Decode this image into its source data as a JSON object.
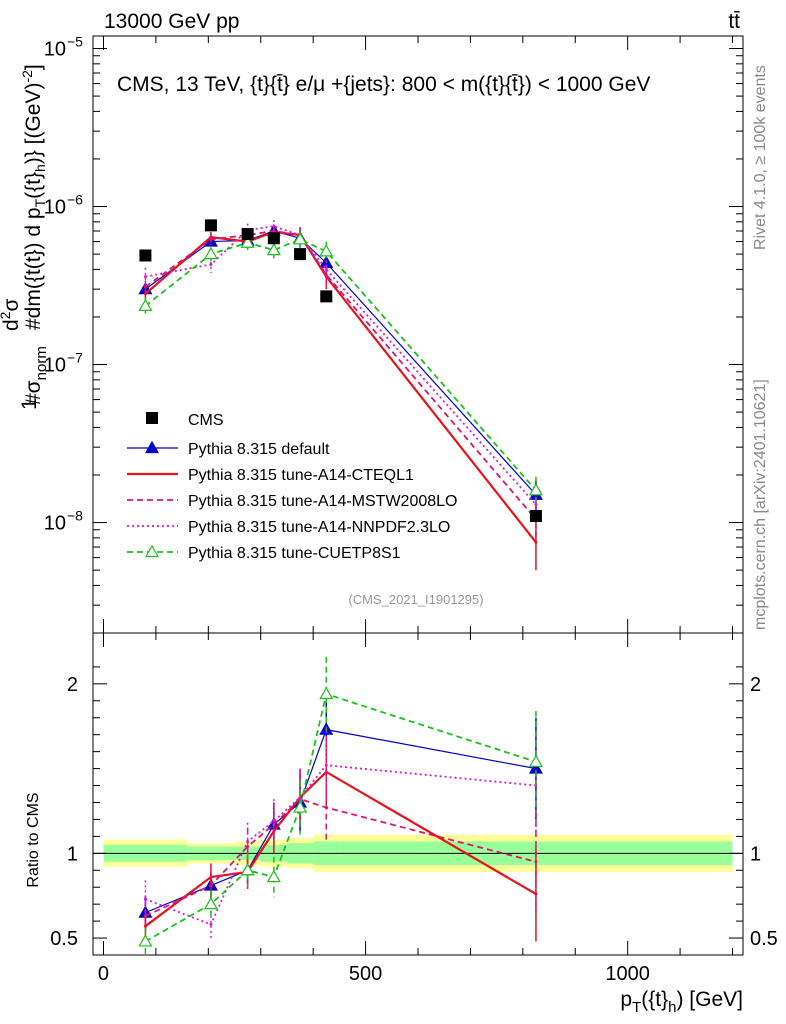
{
  "header": {
    "energy_label": "13000 GeV pp",
    "process_label": "tt̄",
    "rivet_label": "Rivet 4.1.0, ≥ 100k events",
    "mcplots_label": "mcplots.cern.ch [arXiv:2401.10621]",
    "analysis_id": "(CMS_2021_I1901295)"
  },
  "colors": {
    "cms": "#000000",
    "default": "#0000cc",
    "cteql1": "#e8121b",
    "mstw": "#e0126e",
    "nnpdf": "#d61ad6",
    "cuetp8s1": "#19c119",
    "band_inner": "#99ff99",
    "band_outer": "#ffff99"
  },
  "chart_data": [
    {
      "type": "line",
      "panel": "main",
      "title": "CMS, 13 TeV, {t}{t̄} e/μ +{jets}: 800 < m({t}{t̄}) < 1000 GeV",
      "ylabel_main": "#frac{1}{σ_norm} #frac{d²σ}{dm({t}{t̄}) d p_T({t}_h)} [(GeV)⁻²]",
      "ylabel_parts": {
        "frac1_num": "1",
        "frac1_den": "#σ",
        "frac1_sub": "norm",
        "frac2_num": "d",
        "frac2_num2": "σ",
        "frac2_sup": "2",
        "frac2_den": "#dm({t",
        "rest": "(t}) d p",
        "sub_T": "T",
        "rest2": "({t}",
        "sub_h": "h",
        "rest3": ")} [(GeV)",
        "sup_exp": "-2",
        "rest4": "]"
      },
      "xlabel_parts": {
        "p": "p",
        "sub_T": "T",
        "mid": "({t}",
        "sub_h": "h",
        "end": ") [GeV]"
      },
      "xlim": [
        -20,
        1220
      ],
      "ylim_log": [
        2e-09,
        1.2e-05
      ],
      "y_ticks": [
        {
          "value": 1e-08,
          "label": "10",
          "exp": "−8"
        },
        {
          "value": 1e-07,
          "label": "10",
          "exp": "−7"
        },
        {
          "value": 1e-06,
          "label": "10",
          "exp": "−6"
        },
        {
          "value": 1e-05,
          "label": "10",
          "exp": "−5"
        }
      ],
      "x_ticks": [
        {
          "value": 0,
          "label": "0"
        },
        {
          "value": 500,
          "label": "500"
        },
        {
          "value": 1000,
          "label": "1000"
        }
      ],
      "bin_edges": [
        0,
        160,
        250,
        300,
        350,
        400,
        450,
        1200
      ],
      "x": [
        80,
        205,
        275,
        325,
        375,
        425,
        825
      ],
      "cms": {
        "name": "CMS",
        "values": [
          4.9e-07,
          7.6e-07,
          6.7e-07,
          6.3e-07,
          5e-07,
          2.7e-07,
          1.1e-08
        ],
        "rel_err_inner": [
          0.05,
          0.04,
          0.04,
          0.05,
          0.06,
          0.07,
          0.07
        ],
        "rel_err_outer": [
          0.08,
          0.06,
          0.07,
          0.08,
          0.09,
          0.11,
          0.11
        ]
      },
      "series": [
        {
          "name": "Pythia 8.315 default",
          "key": "default",
          "style": "solid",
          "marker": "triangle-filled",
          "values": [
            3e-07,
            6e-07,
            6.1e-07,
            7e-07,
            6.3e-07,
            4.4e-07,
            1.5e-08
          ],
          "errors": [
            5e-09,
            3e-08,
            5e-08,
            6e-08,
            8e-08,
            6e-08,
            3.5e-09
          ]
        },
        {
          "name": "Pythia 8.315 tune-A14-CTEQL1",
          "key": "cteql1",
          "style": "solid",
          "marker": "none",
          "values": [
            2.8e-07,
            6.4e-07,
            6e-07,
            6.9e-07,
            6.6e-07,
            3.6e-07,
            7.5e-09
          ],
          "errors": [
            3e-08,
            5e-08,
            6e-08,
            7e-08,
            8e-08,
            6e-08,
            2.5e-09
          ]
        },
        {
          "name": "Pythia 8.315 tune-A14-MSTW2008LO",
          "key": "mstw",
          "style": "dashed",
          "marker": "none",
          "values": [
            3.1e-07,
            6.2e-07,
            6.6e-07,
            7e-07,
            6.6e-07,
            3.7e-07,
            1.05e-08
          ],
          "errors": [
            3e-08,
            5e-08,
            6e-08,
            7e-08,
            8e-08,
            6e-08,
            3e-09
          ]
        },
        {
          "name": "Pythia 8.315 tune-A14-NNPDF2.3LO",
          "key": "nnpdf",
          "style": "dotted",
          "marker": "none",
          "values": [
            3.6e-07,
            4.3e-07,
            7.1e-07,
            7.5e-07,
            6.6e-07,
            4e-07,
            1.3e-08
          ],
          "errors": [
            5e-08,
            5e-08,
            7e-08,
            7e-08,
            8e-08,
            6e-08,
            3.5e-09
          ]
        },
        {
          "name": "Pythia 8.315 tune-CUETP8S1",
          "key": "cuetp8s1",
          "style": "dashed",
          "marker": "triangle-open",
          "values": [
            2.35e-07,
            5e-07,
            5.9e-07,
            5.3e-07,
            6.2e-07,
            5.2e-07,
            1.6e-08
          ],
          "errors": [
            3e-08,
            5e-08,
            6e-08,
            6e-08,
            8e-08,
            8e-08,
            3.5e-09
          ]
        }
      ]
    },
    {
      "type": "line",
      "panel": "ratio",
      "ylabel": "Ratio to CMS",
      "ylim": [
        0.4,
        2.3
      ],
      "y_ticks": [
        {
          "value": 0.5,
          "label": "0.5"
        },
        {
          "value": 1,
          "label": "1"
        },
        {
          "value": 2,
          "label": "2"
        }
      ],
      "x": [
        80,
        205,
        275,
        325,
        375,
        425,
        825
      ],
      "series": [
        {
          "key": "default",
          "values": [
            0.65,
            0.81,
            0.9,
            1.17,
            1.3,
            1.73,
            1.5
          ],
          "errors": [
            0.1,
            0.07,
            0.1,
            0.13,
            0.17,
            0.2,
            0.3
          ]
        },
        {
          "key": "cteql1",
          "values": [
            0.57,
            0.86,
            0.89,
            1.13,
            1.33,
            1.48,
            0.76
          ],
          "errors": [
            0.1,
            0.08,
            0.1,
            0.13,
            0.17,
            0.2,
            0.28
          ]
        },
        {
          "key": "mstw",
          "values": [
            0.63,
            0.81,
            1.04,
            1.17,
            1.32,
            1.27,
            0.95
          ],
          "errors": [
            0.1,
            0.08,
            0.11,
            0.13,
            0.17,
            0.2,
            0.3
          ]
        },
        {
          "key": "nnpdf",
          "values": [
            0.73,
            0.58,
            1.07,
            1.19,
            1.33,
            1.52,
            1.4
          ],
          "errors": [
            0.11,
            0.08,
            0.11,
            0.13,
            0.17,
            0.2,
            0.3
          ]
        },
        {
          "key": "cuetp8s1",
          "values": [
            0.48,
            0.7,
            0.9,
            0.86,
            1.27,
            1.94,
            1.54
          ],
          "errors": [
            0.08,
            0.08,
            0.1,
            0.12,
            0.16,
            0.22,
            0.3
          ]
        }
      ]
    }
  ]
}
